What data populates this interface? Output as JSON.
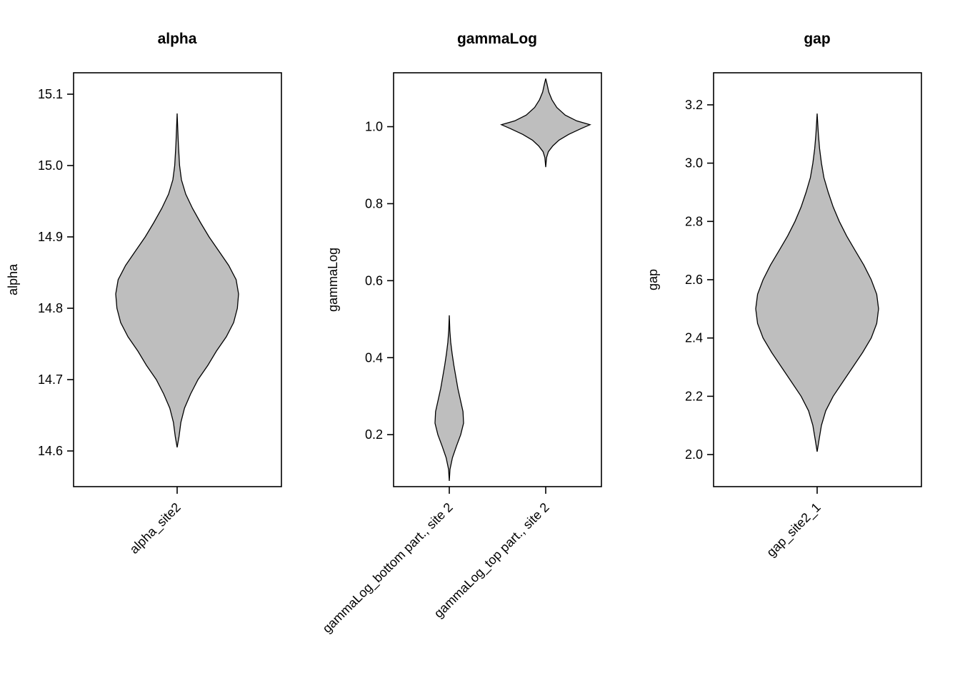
{
  "chart_data": [
    {
      "type": "violin",
      "title": "alpha",
      "ylabel": "alpha",
      "ylim": [
        14.55,
        15.13
      ],
      "yticks": [
        14.6,
        14.7,
        14.8,
        14.9,
        15.0,
        15.1
      ],
      "ytick_labels": [
        "14.6",
        "14.7",
        "14.8",
        "14.9",
        "15.0",
        "15.1"
      ],
      "fill": "#bebebe",
      "categories": [
        "alpha_site2"
      ],
      "series": [
        {
          "category": "alpha_site2",
          "min": 14.605,
          "max": 15.073,
          "density": [
            [
              14.605,
              0.0
            ],
            [
              14.62,
              0.03
            ],
            [
              14.64,
              0.06
            ],
            [
              14.66,
              0.12
            ],
            [
              14.68,
              0.22
            ],
            [
              14.7,
              0.34
            ],
            [
              14.72,
              0.5
            ],
            [
              14.74,
              0.64
            ],
            [
              14.76,
              0.8
            ],
            [
              14.78,
              0.92
            ],
            [
              14.8,
              0.98
            ],
            [
              14.82,
              1.0
            ],
            [
              14.84,
              0.96
            ],
            [
              14.86,
              0.84
            ],
            [
              14.88,
              0.68
            ],
            [
              14.9,
              0.52
            ],
            [
              14.92,
              0.38
            ],
            [
              14.94,
              0.25
            ],
            [
              14.96,
              0.14
            ],
            [
              14.98,
              0.07
            ],
            [
              15.0,
              0.04
            ],
            [
              15.03,
              0.02
            ],
            [
              15.073,
              0.0
            ]
          ]
        }
      ]
    },
    {
      "type": "violin",
      "title": "gammaLog",
      "ylabel": "gammaLog",
      "ylim": [
        0.065,
        1.14
      ],
      "yticks": [
        0.2,
        0.4,
        0.6,
        0.8,
        1.0
      ],
      "ytick_labels": [
        "0.2",
        "0.4",
        "0.6",
        "0.8",
        "1.0"
      ],
      "fill": "#bebebe",
      "categories": [
        "gammaLog_bottom part., site 2",
        "gammaLog_top part., site 2"
      ],
      "series": [
        {
          "category": "gammaLog_bottom part., site 2",
          "min": 0.08,
          "max": 0.51,
          "density": [
            [
              0.08,
              0.0
            ],
            [
              0.11,
              0.05
            ],
            [
              0.14,
              0.22
            ],
            [
              0.17,
              0.5
            ],
            [
              0.2,
              0.8
            ],
            [
              0.23,
              1.0
            ],
            [
              0.26,
              0.96
            ],
            [
              0.29,
              0.78
            ],
            [
              0.32,
              0.6
            ],
            [
              0.35,
              0.46
            ],
            [
              0.38,
              0.32
            ],
            [
              0.41,
              0.2
            ],
            [
              0.44,
              0.1
            ],
            [
              0.47,
              0.04
            ],
            [
              0.51,
              0.0
            ]
          ]
        },
        {
          "category": "gammaLog_top part., site 2",
          "min": 0.895,
          "max": 1.125,
          "density": [
            [
              0.895,
              0.0
            ],
            [
              0.92,
              0.02
            ],
            [
              0.935,
              0.06
            ],
            [
              0.95,
              0.16
            ],
            [
              0.965,
              0.3
            ],
            [
              0.98,
              0.52
            ],
            [
              0.995,
              0.8
            ],
            [
              1.005,
              1.0
            ],
            [
              1.015,
              0.7
            ],
            [
              1.03,
              0.44
            ],
            [
              1.05,
              0.25
            ],
            [
              1.07,
              0.14
            ],
            [
              1.09,
              0.07
            ],
            [
              1.11,
              0.03
            ],
            [
              1.125,
              0.0
            ]
          ]
        }
      ]
    },
    {
      "type": "violin",
      "title": "gap",
      "ylabel": "gap",
      "ylim": [
        1.89,
        3.31
      ],
      "yticks": [
        2.0,
        2.2,
        2.4,
        2.6,
        2.8,
        3.0,
        3.2
      ],
      "ytick_labels": [
        "2.0",
        "2.2",
        "2.4",
        "2.6",
        "2.8",
        "3.0",
        "3.2"
      ],
      "fill": "#bebebe",
      "categories": [
        "gap_site2_1"
      ],
      "series": [
        {
          "category": "gap_site2_1",
          "min": 2.01,
          "max": 3.17,
          "density": [
            [
              2.01,
              0.0
            ],
            [
              2.05,
              0.03
            ],
            [
              2.1,
              0.07
            ],
            [
              2.15,
              0.14
            ],
            [
              2.2,
              0.26
            ],
            [
              2.25,
              0.42
            ],
            [
              2.3,
              0.58
            ],
            [
              2.35,
              0.74
            ],
            [
              2.4,
              0.88
            ],
            [
              2.45,
              0.97
            ],
            [
              2.5,
              1.0
            ],
            [
              2.55,
              0.97
            ],
            [
              2.6,
              0.88
            ],
            [
              2.65,
              0.76
            ],
            [
              2.7,
              0.62
            ],
            [
              2.75,
              0.48
            ],
            [
              2.8,
              0.36
            ],
            [
              2.85,
              0.26
            ],
            [
              2.9,
              0.18
            ],
            [
              2.95,
              0.11
            ],
            [
              3.0,
              0.07
            ],
            [
              3.05,
              0.04
            ],
            [
              3.1,
              0.02
            ],
            [
              3.17,
              0.0
            ]
          ]
        }
      ]
    }
  ]
}
